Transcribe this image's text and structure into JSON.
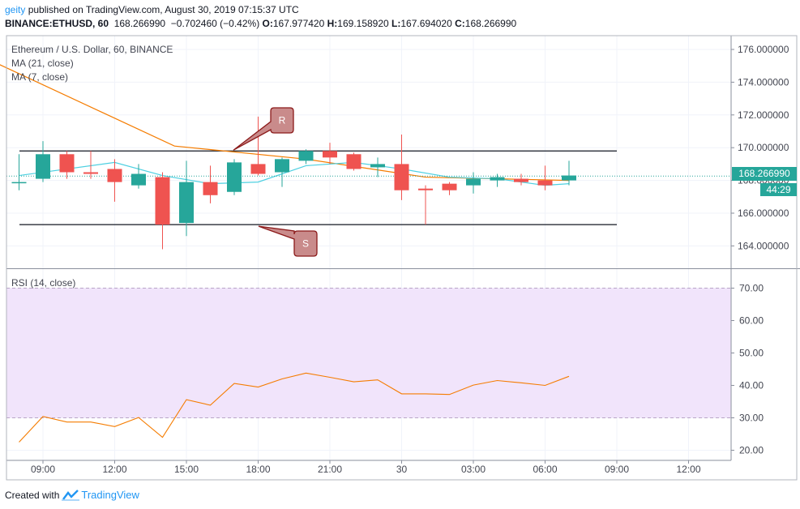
{
  "header": {
    "user": "geity",
    "published_text": " published on TradingView.com, August 30, 2019 07:15:37 UTC",
    "symbol_line": "BINANCE:ETHUSD, 60",
    "last": "168.266990",
    "change": "−0.702460 (−0.42%)",
    "o_label": "O:",
    "o": "167.977420",
    "h_label": "H:",
    "h": "169.158920",
    "l_label": "L:",
    "l": "167.694020",
    "c_label": "C:",
    "c": "168.266990"
  },
  "indicators": {
    "main_title": "Ethereum / U.S. Dollar, 60, BINANCE",
    "ma21": "MA (21, close)",
    "ma7": "MA (7, close)",
    "rsi": "RSI (14, close)"
  },
  "price_tag": "168.266990",
  "time_tag": "44:29",
  "footer": {
    "created_with": "Created with",
    "brand": "TradingView"
  },
  "colors": {
    "up": "#26a69a",
    "down": "#ef5350",
    "ma21": "#f57c00",
    "ma7": "#4dd0e1",
    "rsi_line": "#f57c00",
    "rsi_band": "#f1e4fb",
    "annotation_fill": "#c98b8b",
    "annotation_stroke": "#8b1a1a"
  },
  "chart_data": [
    {
      "type": "candlestick",
      "title": "Ethereum / U.S. Dollar, 60, BINANCE",
      "x_ticks": [
        "09:00",
        "12:00",
        "15:00",
        "18:00",
        "21:00",
        "30",
        "03:00",
        "06:00",
        "09:00",
        "12:00"
      ],
      "y_ticks": [
        "164.000000",
        "166.000000",
        "168.000000",
        "170.000000",
        "172.000000",
        "174.000000",
        "176.000000"
      ],
      "ylim": [
        162.6,
        177.4
      ],
      "candles": [
        {
          "o": 167.9,
          "h": 169.6,
          "l": 167.4,
          "c": 167.9
        },
        {
          "o": 168.1,
          "h": 170.4,
          "l": 167.9,
          "c": 169.6
        },
        {
          "o": 169.6,
          "h": 169.8,
          "l": 168.1,
          "c": 168.5
        },
        {
          "o": 168.5,
          "h": 169.8,
          "l": 168.1,
          "c": 168.4
        },
        {
          "o": 168.7,
          "h": 169.3,
          "l": 166.7,
          "c": 167.9
        },
        {
          "o": 167.7,
          "h": 169.0,
          "l": 167.5,
          "c": 168.4
        },
        {
          "o": 168.2,
          "h": 168.5,
          "l": 163.8,
          "c": 165.3
        },
        {
          "o": 165.4,
          "h": 169.2,
          "l": 164.6,
          "c": 167.9
        },
        {
          "o": 167.9,
          "h": 168.9,
          "l": 166.6,
          "c": 167.1
        },
        {
          "o": 167.3,
          "h": 169.3,
          "l": 167.1,
          "c": 169.1
        },
        {
          "o": 169.0,
          "h": 171.9,
          "l": 168.3,
          "c": 168.4
        },
        {
          "o": 168.5,
          "h": 169.4,
          "l": 167.6,
          "c": 169.3
        },
        {
          "o": 169.2,
          "h": 169.9,
          "l": 169.0,
          "c": 169.8
        },
        {
          "o": 169.8,
          "h": 170.3,
          "l": 169.0,
          "c": 169.4
        },
        {
          "o": 169.6,
          "h": 169.7,
          "l": 168.6,
          "c": 168.7
        },
        {
          "o": 168.8,
          "h": 169.4,
          "l": 168.2,
          "c": 169.0
        },
        {
          "o": 169.0,
          "h": 170.8,
          "l": 166.8,
          "c": 167.4
        },
        {
          "o": 167.5,
          "h": 167.7,
          "l": 165.3,
          "c": 167.4
        },
        {
          "o": 167.8,
          "h": 167.9,
          "l": 167.1,
          "c": 167.4
        },
        {
          "o": 167.7,
          "h": 168.5,
          "l": 167.2,
          "c": 168.1
        },
        {
          "o": 168.0,
          "h": 168.4,
          "l": 167.6,
          "c": 168.2
        },
        {
          "o": 168.1,
          "h": 168.4,
          "l": 167.7,
          "c": 167.9
        },
        {
          "o": 168.0,
          "h": 168.9,
          "l": 167.4,
          "c": 167.7
        },
        {
          "o": 168.0,
          "h": 169.2,
          "l": 167.7,
          "c": 168.3
        }
      ],
      "ma21": [
        {
          "i": -1,
          "v": 175.2
        },
        {
          "i": 6.5,
          "v": 170.1
        },
        {
          "i": 12,
          "v": 169.3
        },
        {
          "i": 17,
          "v": 168.2
        },
        {
          "i": 23,
          "v": 168.0
        }
      ],
      "ma7": [
        {
          "i": 0,
          "v": 168.3
        },
        {
          "i": 4,
          "v": 169.1
        },
        {
          "i": 6,
          "v": 168.3
        },
        {
          "i": 8,
          "v": 167.8
        },
        {
          "i": 10,
          "v": 167.9
        },
        {
          "i": 12,
          "v": 168.9
        },
        {
          "i": 14,
          "v": 169.1
        },
        {
          "i": 16,
          "v": 168.7
        },
        {
          "i": 18,
          "v": 168.2
        },
        {
          "i": 20,
          "v": 168.1
        },
        {
          "i": 22,
          "v": 167.7
        },
        {
          "i": 23,
          "v": 167.8
        }
      ],
      "levels": [
        {
          "name": "R",
          "value": 169.8
        },
        {
          "name": "S",
          "value": 165.3
        }
      ],
      "last_price": 168.26699
    },
    {
      "type": "line",
      "title": "RSI (14, close)",
      "y_ticks": [
        "20.00",
        "30.00",
        "40.00",
        "50.00",
        "60.00",
        "70.00"
      ],
      "ylim": [
        18,
        74
      ],
      "band": [
        30,
        70
      ],
      "values": [
        22.5,
        30.4,
        28.7,
        28.7,
        27.3,
        30.1,
        24.0,
        35.6,
        33.9,
        40.6,
        39.5,
        42.0,
        43.8,
        42.5,
        41.1,
        41.7,
        37.4,
        37.4,
        37.2,
        40.1,
        41.5,
        40.8,
        40.0,
        42.8
      ]
    }
  ]
}
